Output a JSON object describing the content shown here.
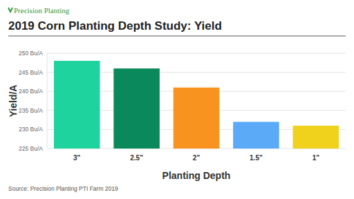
{
  "chart_data": {
    "type": "bar",
    "logo": "Precision Planting",
    "title": "2019 Corn Planting Depth Study: Yield",
    "x_label": "Planting Depth",
    "y_label": "Yield/A",
    "source": "Source: Precision Planting PTI Farm 2019",
    "categories": [
      "3\"",
      "2.5\"",
      "2\"",
      "1.5\"",
      "1\""
    ],
    "values": [
      248,
      246,
      241,
      232,
      231
    ],
    "colors": [
      "#1fd39e",
      "#0a8a5c",
      "#f7931e",
      "#5aaaf8",
      "#f0d21c"
    ],
    "ylim": [
      225,
      250
    ],
    "yticks": [
      {
        "value": 225,
        "label": "225 Bu/A"
      },
      {
        "value": 230,
        "label": "230 Bu/A"
      },
      {
        "value": 235,
        "label": "235 Bu/A"
      },
      {
        "value": 240,
        "label": "240 Bu/A"
      },
      {
        "value": 245,
        "label": "245 Bu/A"
      },
      {
        "value": 250,
        "label": "250 Bu/A"
      }
    ],
    "grid": true
  }
}
